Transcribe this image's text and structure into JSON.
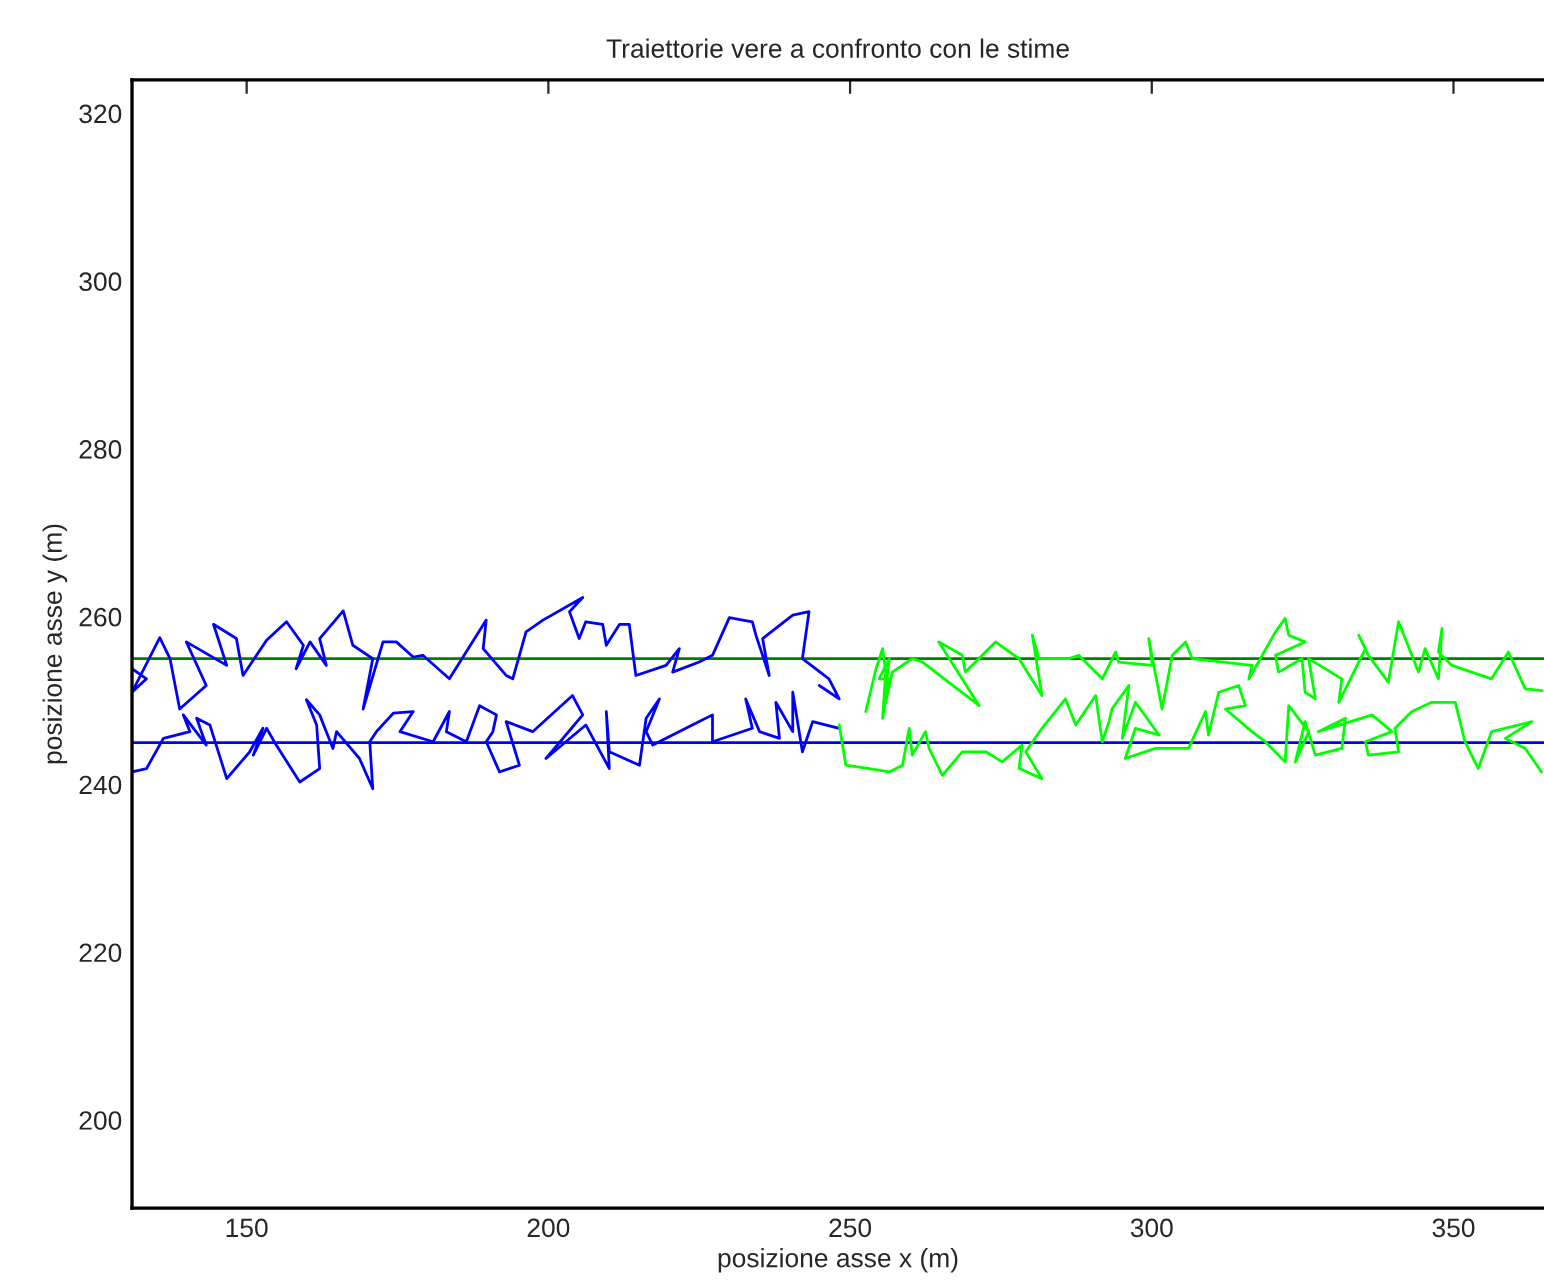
{
  "chart_data": {
    "type": "line",
    "title": "Traiettorie vere a confronto con le stime",
    "xlabel": "posizione asse x (m)",
    "ylabel": "posizione asse y (m)",
    "xlim": [
      131,
      365
    ],
    "ylim": [
      189.5,
      324
    ],
    "xticks": [
      150,
      200,
      250,
      300,
      350
    ],
    "yticks": [
      200,
      220,
      240,
      260,
      280,
      300,
      320
    ],
    "grid": false,
    "legend": false,
    "marker": "none",
    "line_style": "solid",
    "ref_lines": [
      {
        "axis": "y",
        "value": 255,
        "color": "#008000"
      },
      {
        "axis": "y",
        "value": 245,
        "color": "#0000ff"
      }
    ],
    "series": [
      {
        "color": "#0000ff",
        "x": [
          131.0,
          133.4,
          131.0,
          135.6,
          137.3,
          138.9,
          143.3,
          140.0,
          146.7,
          144.5,
          148.3,
          149.4,
          153.3,
          156.6,
          159.4,
          158.2,
          160.5,
          163.2,
          162.1,
          166.0,
          167.6,
          170.9,
          169.3,
          172.6,
          174.8,
          177.6,
          179.2,
          183.6,
          189.7,
          189.2,
          193.0,
          194.1,
          196.3,
          199.1,
          205.7,
          203.5,
          205.1,
          206.2,
          209.0,
          209.6,
          211.8,
          213.4,
          214.5,
          219.5,
          221.7,
          220.6,
          225.0,
          227.2,
          230.0,
          233.8,
          234.4,
          236.6,
          235.5,
          240.5,
          243.2,
          242.1,
          246.5,
          248.2,
          244.9
        ],
        "values": [
          253.8,
          252.6,
          251.0,
          257.5,
          255.0,
          249.0,
          251.8,
          257.0,
          254.2,
          259.1,
          257.4,
          253.0,
          257.2,
          259.4,
          256.6,
          253.8,
          257.0,
          254.2,
          257.4,
          260.7,
          256.6,
          255.0,
          249.0,
          257.0,
          257.0,
          255.2,
          255.4,
          252.6,
          259.6,
          256.2,
          253.0,
          252.6,
          258.2,
          259.6,
          262.3,
          260.6,
          257.4,
          259.4,
          259.1,
          256.6,
          259.1,
          259.1,
          253.0,
          254.2,
          256.2,
          253.4,
          254.6,
          255.4,
          259.9,
          259.4,
          257.8,
          253.0,
          257.4,
          260.2,
          260.6,
          255.0,
          252.6,
          250.2,
          251.8
        ]
      },
      {
        "color": "#0000ff",
        "x": [
          131.0,
          133.4,
          136.2,
          140.6,
          139.5,
          143.3,
          141.7,
          143.9,
          146.7,
          150.5,
          152.7,
          151.1,
          153.3,
          154.9,
          158.8,
          162.1,
          161.6,
          159.9,
          162.1,
          163.2,
          164.3,
          164.9,
          168.7,
          170.9,
          170.4,
          171.5,
          174.3,
          177.6,
          175.4,
          180.9,
          183.6,
          183.1,
          186.4,
          188.6,
          191.4,
          190.8,
          189.7,
          191.9,
          195.2,
          193.0,
          197.4,
          204.0,
          205.7,
          199.6,
          206.2,
          210.1,
          209.6,
          210.1,
          215.1,
          216.2,
          218.4,
          216.2,
          217.3,
          225.0,
          227.2,
          227.2,
          233.8,
          232.7,
          235.0,
          238.3,
          237.7,
          240.5,
          240.5,
          242.1,
          243.8,
          248.2
        ],
        "values": [
          241.5,
          241.9,
          245.5,
          246.3,
          248.3,
          244.7,
          247.9,
          247.1,
          240.7,
          243.9,
          246.7,
          243.5,
          246.7,
          244.7,
          240.3,
          241.9,
          247.1,
          250.1,
          248.3,
          246.3,
          244.3,
          246.3,
          243.1,
          239.5,
          245.1,
          246.3,
          248.5,
          248.7,
          246.3,
          245.1,
          248.7,
          246.3,
          245.1,
          249.4,
          248.3,
          246.3,
          245.1,
          241.5,
          242.3,
          247.5,
          246.3,
          250.6,
          248.3,
          243.1,
          247.1,
          241.9,
          248.7,
          243.9,
          242.3,
          247.9,
          250.2,
          246.3,
          244.7,
          247.5,
          248.3,
          245.1,
          246.7,
          250.2,
          246.3,
          245.5,
          249.8,
          246.3,
          251.0,
          243.9,
          247.5,
          246.7
        ]
      },
      {
        "color": "#00ff00",
        "x": [
          252.6,
          254.3,
          255.4,
          255.9,
          255.4,
          256.5,
          254.8,
          256.5,
          255.4,
          257.0,
          260.3,
          262.0,
          271.4,
          264.7,
          268.6,
          269.1,
          274.1,
          278.0,
          281.8,
          280.2,
          281.3,
          286.3,
          287.9,
          291.8,
          294.0,
          294.5,
          300.1,
          299.5,
          301.7,
          303.4,
          305.6,
          306.7,
          316.6,
          316.1,
          320.5,
          322.1,
          322.7,
          325.4,
          320.5,
          321.0,
          324.9,
          325.4,
          327.1,
          326.0,
          331.5,
          331.0,
          335.4,
          334.3,
          335.9,
          339.2,
          340.9,
          344.2,
          345.3,
          347.5,
          348.1,
          347.5,
          349.7,
          353.0,
          356.3,
          359.1,
          361.9,
          364.7
        ],
        "values": [
          248.7,
          253.8,
          256.2,
          253.4,
          247.9,
          252.6,
          252.6,
          255.0,
          248.3,
          253.4,
          255.0,
          254.6,
          249.4,
          257.0,
          255.4,
          253.4,
          257.0,
          255.0,
          250.6,
          257.8,
          255.0,
          255.0,
          255.4,
          252.6,
          255.8,
          254.6,
          254.2,
          257.4,
          249.0,
          255.4,
          257.0,
          255.0,
          254.2,
          252.6,
          258.2,
          259.8,
          257.8,
          257.0,
          255.4,
          253.4,
          255.0,
          251.0,
          250.2,
          255.0,
          252.6,
          249.8,
          256.2,
          257.8,
          255.4,
          252.2,
          259.4,
          253.4,
          256.2,
          252.6,
          258.6,
          255.8,
          254.2,
          253.4,
          252.6,
          255.8,
          251.4,
          251.2
        ]
      },
      {
        "color": "#00ff00",
        "x": [
          248.2,
          249.3,
          253.2,
          256.5,
          258.7,
          259.8,
          260.3,
          262.5,
          263.1,
          265.3,
          268.6,
          272.5,
          275.2,
          278.5,
          278.0,
          281.8,
          279.1,
          281.8,
          285.7,
          287.4,
          290.7,
          291.8,
          292.9,
          293.4,
          296.2,
          295.1,
          297.3,
          301.2,
          297.3,
          295.6,
          300.6,
          306.1,
          308.9,
          309.4,
          311.1,
          314.4,
          315.5,
          312.2,
          316.6,
          318.8,
          322.1,
          322.7,
          326.0,
          323.8,
          325.4,
          327.1,
          331.5,
          332.1,
          327.6,
          336.5,
          339.8,
          335.4,
          335.9,
          340.9,
          340.3,
          343.1,
          346.4,
          350.3,
          351.9,
          354.1,
          356.3,
          363.0,
          358.6,
          361.9,
          364.6
        ],
        "values": [
          247.1,
          242.3,
          241.9,
          241.5,
          242.3,
          246.7,
          243.5,
          246.3,
          244.3,
          241.1,
          243.9,
          243.9,
          242.7,
          244.7,
          241.9,
          240.7,
          243.9,
          246.7,
          250.2,
          247.1,
          250.6,
          245.1,
          247.5,
          249.0,
          251.8,
          245.5,
          249.8,
          245.9,
          246.7,
          243.1,
          244.3,
          244.3,
          248.7,
          245.9,
          251.0,
          251.8,
          249.4,
          249.0,
          246.3,
          245.1,
          242.7,
          249.4,
          246.3,
          242.7,
          247.5,
          243.5,
          244.3,
          247.9,
          246.3,
          248.3,
          246.3,
          245.1,
          243.5,
          243.9,
          246.7,
          248.7,
          249.8,
          249.8,
          245.1,
          241.9,
          246.3,
          247.5,
          245.5,
          244.3,
          241.5
        ]
      }
    ]
  }
}
